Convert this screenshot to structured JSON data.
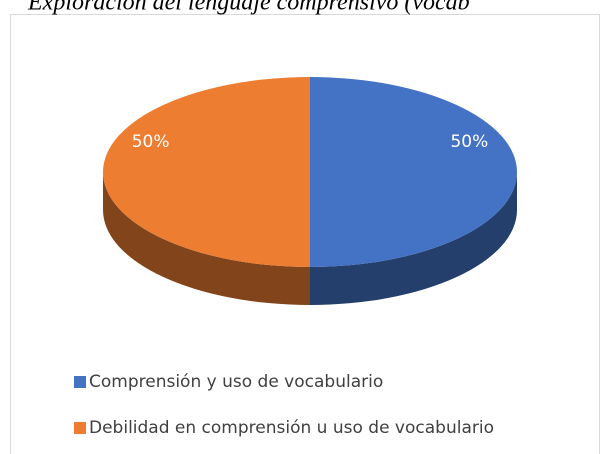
{
  "chart_data": {
    "type": "pie",
    "title": "Exploración del lenguaje comprensivo (vocab",
    "categories": [
      "Comprensión y uso de vocabulario",
      "Debilidad en comprensión u uso de vocabulario"
    ],
    "values": [
      50,
      50
    ],
    "value_labels": [
      "50%",
      "50%"
    ],
    "colors": [
      "#4472c4",
      "#ed7d31"
    ],
    "legend": "bottom"
  }
}
